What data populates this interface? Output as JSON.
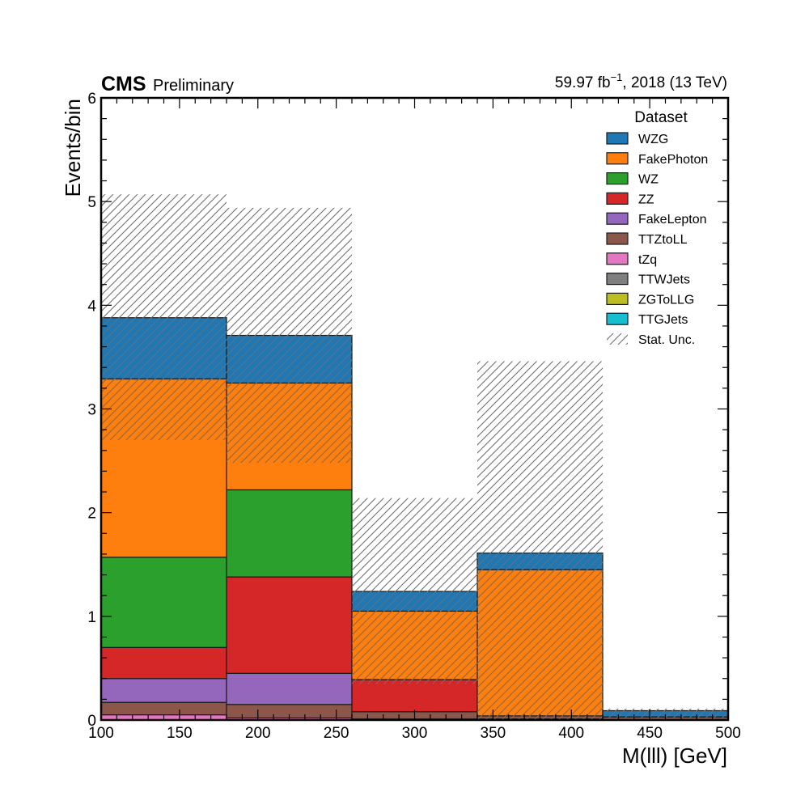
{
  "header": {
    "experiment": "CMS",
    "status": "Preliminary",
    "lumi_main": "59.97 fb",
    "lumi_exp": "−1",
    "lumi_tail": ", 2018 (13 TeV)"
  },
  "chart_data": {
    "type": "bar",
    "stacked": true,
    "histogram": true,
    "xlabel": "M(lll) [GeV]",
    "ylabel": "Events/bin",
    "xlim": [
      100,
      500
    ],
    "ylim": [
      0,
      6
    ],
    "xticks": [
      100,
      150,
      200,
      250,
      300,
      350,
      400,
      450,
      500
    ],
    "yticks": [
      0,
      1,
      2,
      3,
      4,
      5,
      6
    ],
    "bin_edges": [
      100,
      180,
      260,
      340,
      420,
      500
    ],
    "legend_title": "Dataset",
    "legend_position": "top-right",
    "series": [
      {
        "name": "TTGJets",
        "color": "#17becf",
        "values": [
          0.0,
          0.0,
          0.0,
          0.0,
          0.0
        ]
      },
      {
        "name": "ZGToLLG",
        "color": "#bcbd22",
        "values": [
          0.0,
          0.0,
          0.0,
          0.0,
          0.0
        ]
      },
      {
        "name": "TTWJets",
        "color": "#7f7f7f",
        "values": [
          0.0,
          0.0,
          0.0,
          0.0,
          0.0
        ]
      },
      {
        "name": "tZq",
        "color": "#e377c2",
        "values": [
          0.05,
          0.02,
          0.01,
          0.01,
          0.0
        ]
      },
      {
        "name": "TTZtoLL",
        "color": "#8c564b",
        "values": [
          0.12,
          0.13,
          0.07,
          0.03,
          0.03
        ]
      },
      {
        "name": "FakeLepton",
        "color": "#9467bd",
        "values": [
          0.23,
          0.3,
          0.0,
          0.0,
          0.0
        ]
      },
      {
        "name": "ZZ",
        "color": "#d62728",
        "values": [
          0.3,
          0.93,
          0.31,
          0.0,
          0.0
        ]
      },
      {
        "name": "WZ",
        "color": "#2ca02c",
        "values": [
          0.87,
          0.84,
          0.0,
          0.0,
          0.0
        ]
      },
      {
        "name": "FakePhoton",
        "color": "#ff7f0e",
        "values": [
          1.72,
          1.03,
          0.66,
          1.41,
          0.0
        ]
      },
      {
        "name": "WZG",
        "color": "#1f77b4",
        "values": [
          0.59,
          0.46,
          0.19,
          0.16,
          0.06
        ]
      }
    ],
    "stat_unc": {
      "name": "Stat. Unc.",
      "lower": [
        2.7,
        2.48,
        0.35,
        0.0,
        0.0
      ],
      "upper": [
        5.07,
        4.94,
        2.14,
        3.46,
        0.11
      ]
    },
    "legend_order": [
      "WZG",
      "FakePhoton",
      "WZ",
      "ZZ",
      "FakeLepton",
      "TTZtoLL",
      "tZq",
      "TTWJets",
      "ZGToLLG",
      "TTGJets",
      "Stat. Unc."
    ]
  }
}
